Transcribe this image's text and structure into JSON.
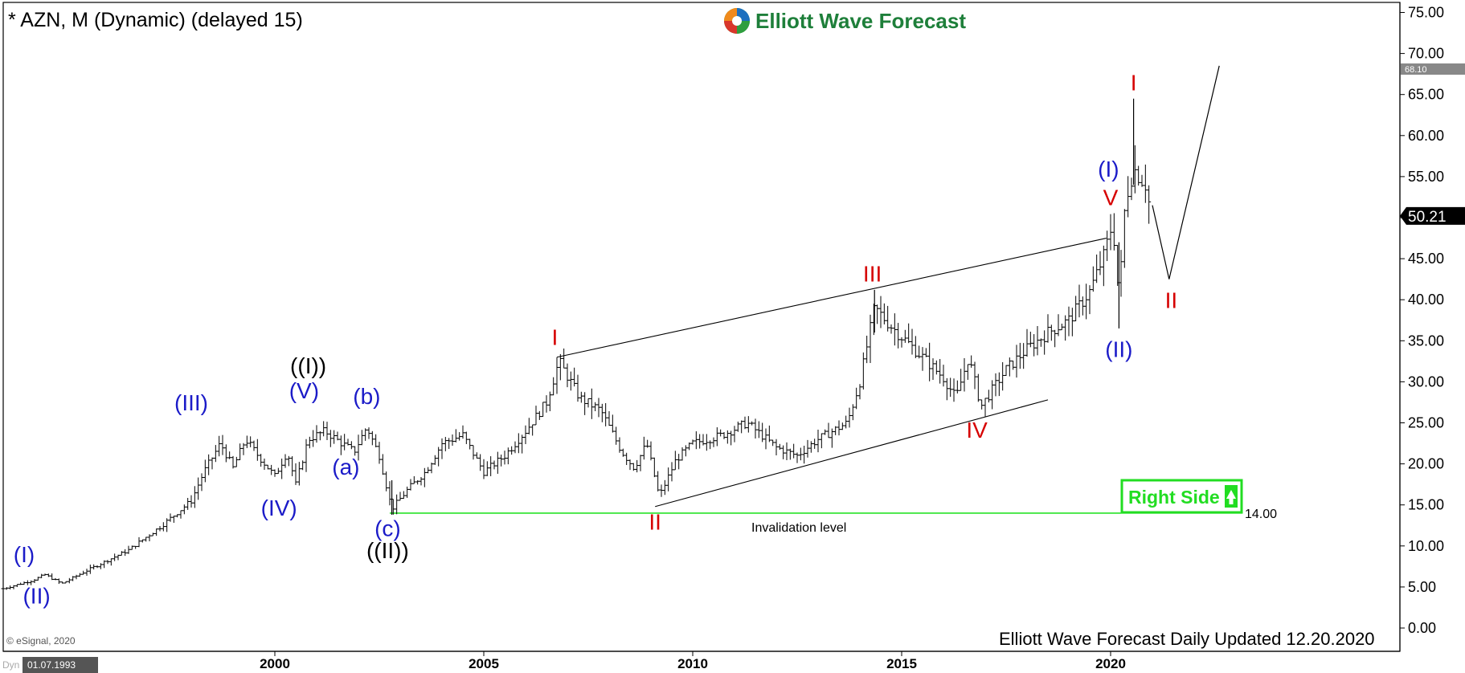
{
  "header": {
    "symbol_title": "* AZN, M (Dynamic) (delayed 15)",
    "brand_name": "Elliott Wave Forecast"
  },
  "footer": {
    "update_note": "Elliott Wave Forecast Daily Updated 12.20.2020",
    "copyright": "© eSignal, 2020",
    "dyn_tag": "Dyn",
    "date_readout": "01.07.1993"
  },
  "colors": {
    "wave_blue": "#1b1bc8",
    "wave_red": "#d60000",
    "wave_black": "#000000",
    "invalidation_green": "#00dd00",
    "right_side_green": "#22dd22"
  },
  "chart_data": {
    "type": "ohlc",
    "period": "monthly",
    "xlim": [
      1993.5,
      2021.5
    ],
    "ylim": [
      0,
      75
    ],
    "y_ticks": [
      0,
      5,
      10,
      15,
      20,
      25,
      30,
      35,
      40,
      45,
      50,
      55,
      60,
      65,
      70,
      75
    ],
    "y_tick_labels": [
      "0.00",
      "5.00",
      "10.00",
      "15.00",
      "20.00",
      "25.00",
      "30.00",
      "35.00",
      "40.00",
      "45.00",
      "50.00",
      "55.00",
      "60.00",
      "65.00",
      "70.00",
      "75.00"
    ],
    "x_ticks": [
      2000,
      2005,
      2010,
      2015,
      2020
    ],
    "x_tick_labels": [
      "2000",
      "2005",
      "2010",
      "2015",
      "2020"
    ],
    "price_anchors": [
      [
        1993.5,
        4.8
      ],
      [
        1994.2,
        5.8
      ],
      [
        1994.5,
        6.5
      ],
      [
        1994.9,
        5.4
      ],
      [
        1995.5,
        7.0
      ],
      [
        1996.5,
        9.5
      ],
      [
        1997.3,
        12.5
      ],
      [
        1998.0,
        15.5
      ],
      [
        1998.3,
        19.0
      ],
      [
        1998.7,
        22.5
      ],
      [
        1999.0,
        19.5
      ],
      [
        1999.3,
        23.0
      ],
      [
        1999.6,
        21.0
      ],
      [
        2000.0,
        18.5
      ],
      [
        2000.3,
        21.5
      ],
      [
        2000.5,
        17.5
      ],
      [
        2000.8,
        23.0
      ],
      [
        2001.2,
        24.0
      ],
      [
        2001.6,
        22.5
      ],
      [
        2001.9,
        21.5
      ],
      [
        2002.2,
        24.5
      ],
      [
        2002.5,
        21.0
      ],
      [
        2002.8,
        14.5
      ],
      [
        2003.2,
        17.0
      ],
      [
        2003.6,
        19.0
      ],
      [
        2004.0,
        22.5
      ],
      [
        2004.5,
        23.5
      ],
      [
        2005.0,
        19.0
      ],
      [
        2005.5,
        21.0
      ],
      [
        2006.0,
        24.0
      ],
      [
        2006.5,
        27.5
      ],
      [
        2006.8,
        32.5
      ],
      [
        2007.3,
        28.0
      ],
      [
        2007.8,
        26.5
      ],
      [
        2008.3,
        21.5
      ],
      [
        2008.6,
        19.5
      ],
      [
        2008.9,
        22.5
      ],
      [
        2009.2,
        16.0
      ],
      [
        2009.6,
        20.5
      ],
      [
        2010.0,
        22.5
      ],
      [
        2010.7,
        23.5
      ],
      [
        2011.3,
        25.0
      ],
      [
        2012.0,
        22.0
      ],
      [
        2012.5,
        21.0
      ],
      [
        2013.0,
        23.0
      ],
      [
        2013.7,
        25.0
      ],
      [
        2014.0,
        30.0
      ],
      [
        2014.35,
        39.0
      ],
      [
        2014.8,
        36.5
      ],
      [
        2015.5,
        33.0
      ],
      [
        2016.0,
        30.5
      ],
      [
        2016.3,
        28.0
      ],
      [
        2016.6,
        33.0
      ],
      [
        2016.9,
        27.0
      ],
      [
        2017.5,
        31.5
      ],
      [
        2018.0,
        34.0
      ],
      [
        2018.5,
        36.0
      ],
      [
        2019.0,
        37.5
      ],
      [
        2019.5,
        41.0
      ],
      [
        2019.85,
        45.5
      ],
      [
        2020.05,
        49.5
      ],
      [
        2020.2,
        40.0
      ],
      [
        2020.35,
        52.0
      ],
      [
        2020.55,
        56.0
      ],
      [
        2020.7,
        55.0
      ],
      [
        2020.85,
        54.0
      ],
      [
        2020.97,
        50.21
      ]
    ],
    "last_price": 50.21,
    "last_price_label": "50.21",
    "marker_price": 68.1,
    "marker_price_label": "68.10",
    "invalidation_level": 14.0,
    "invalidation_value_label": "14.00",
    "invalidation_text": "Invalidation level",
    "right_side_label": "Right Side",
    "channel_lines": [
      {
        "x1": 2006.75,
        "y1": 33.0,
        "x2": 2019.9,
        "y2": 47.5
      },
      {
        "x1": 2009.1,
        "y1": 14.8,
        "x2": 2018.5,
        "y2": 27.8
      }
    ],
    "projection_path": [
      [
        2021.0,
        51.5
      ],
      [
        2021.4,
        42.5
      ],
      [
        2022.6,
        68.5
      ]
    ],
    "wave_labels": [
      {
        "text": "(I)",
        "x": 1994.0,
        "y": 8.0,
        "color": "blue"
      },
      {
        "text": "(II)",
        "x": 1994.3,
        "y": 3.0,
        "color": "blue"
      },
      {
        "text": "(III)",
        "x": 1998.0,
        "y": 26.5,
        "color": "blue"
      },
      {
        "text": "(IV)",
        "x": 2000.1,
        "y": 13.7,
        "color": "blue"
      },
      {
        "text": "(V)",
        "x": 2000.7,
        "y": 28.0,
        "color": "blue"
      },
      {
        "text": "((I))",
        "x": 2000.8,
        "y": 31.0,
        "color": "black"
      },
      {
        "text": "(a)",
        "x": 2001.7,
        "y": 18.7,
        "color": "blue"
      },
      {
        "text": "(b)",
        "x": 2002.2,
        "y": 27.3,
        "color": "blue"
      },
      {
        "text": "(c)",
        "x": 2002.7,
        "y": 11.2,
        "color": "blue"
      },
      {
        "text": "((II))",
        "x": 2002.7,
        "y": 8.5,
        "color": "black"
      },
      {
        "text": "I",
        "x": 2006.7,
        "y": 34.5,
        "color": "red"
      },
      {
        "text": "II",
        "x": 2009.1,
        "y": 12.0,
        "color": "red"
      },
      {
        "text": "III",
        "x": 2014.3,
        "y": 42.2,
        "color": "red"
      },
      {
        "text": "IV",
        "x": 2016.8,
        "y": 23.2,
        "color": "red"
      },
      {
        "text": "(I)",
        "x": 2019.95,
        "y": 55.0,
        "color": "blue"
      },
      {
        "text": "V",
        "x": 2020.0,
        "y": 51.5,
        "color": "red"
      },
      {
        "text": "(II)",
        "x": 2020.2,
        "y": 33.0,
        "color": "blue"
      },
      {
        "text": "I",
        "x": 2020.55,
        "y": 65.5,
        "color": "red"
      },
      {
        "text": "II",
        "x": 2021.45,
        "y": 39.0,
        "color": "red"
      }
    ]
  }
}
